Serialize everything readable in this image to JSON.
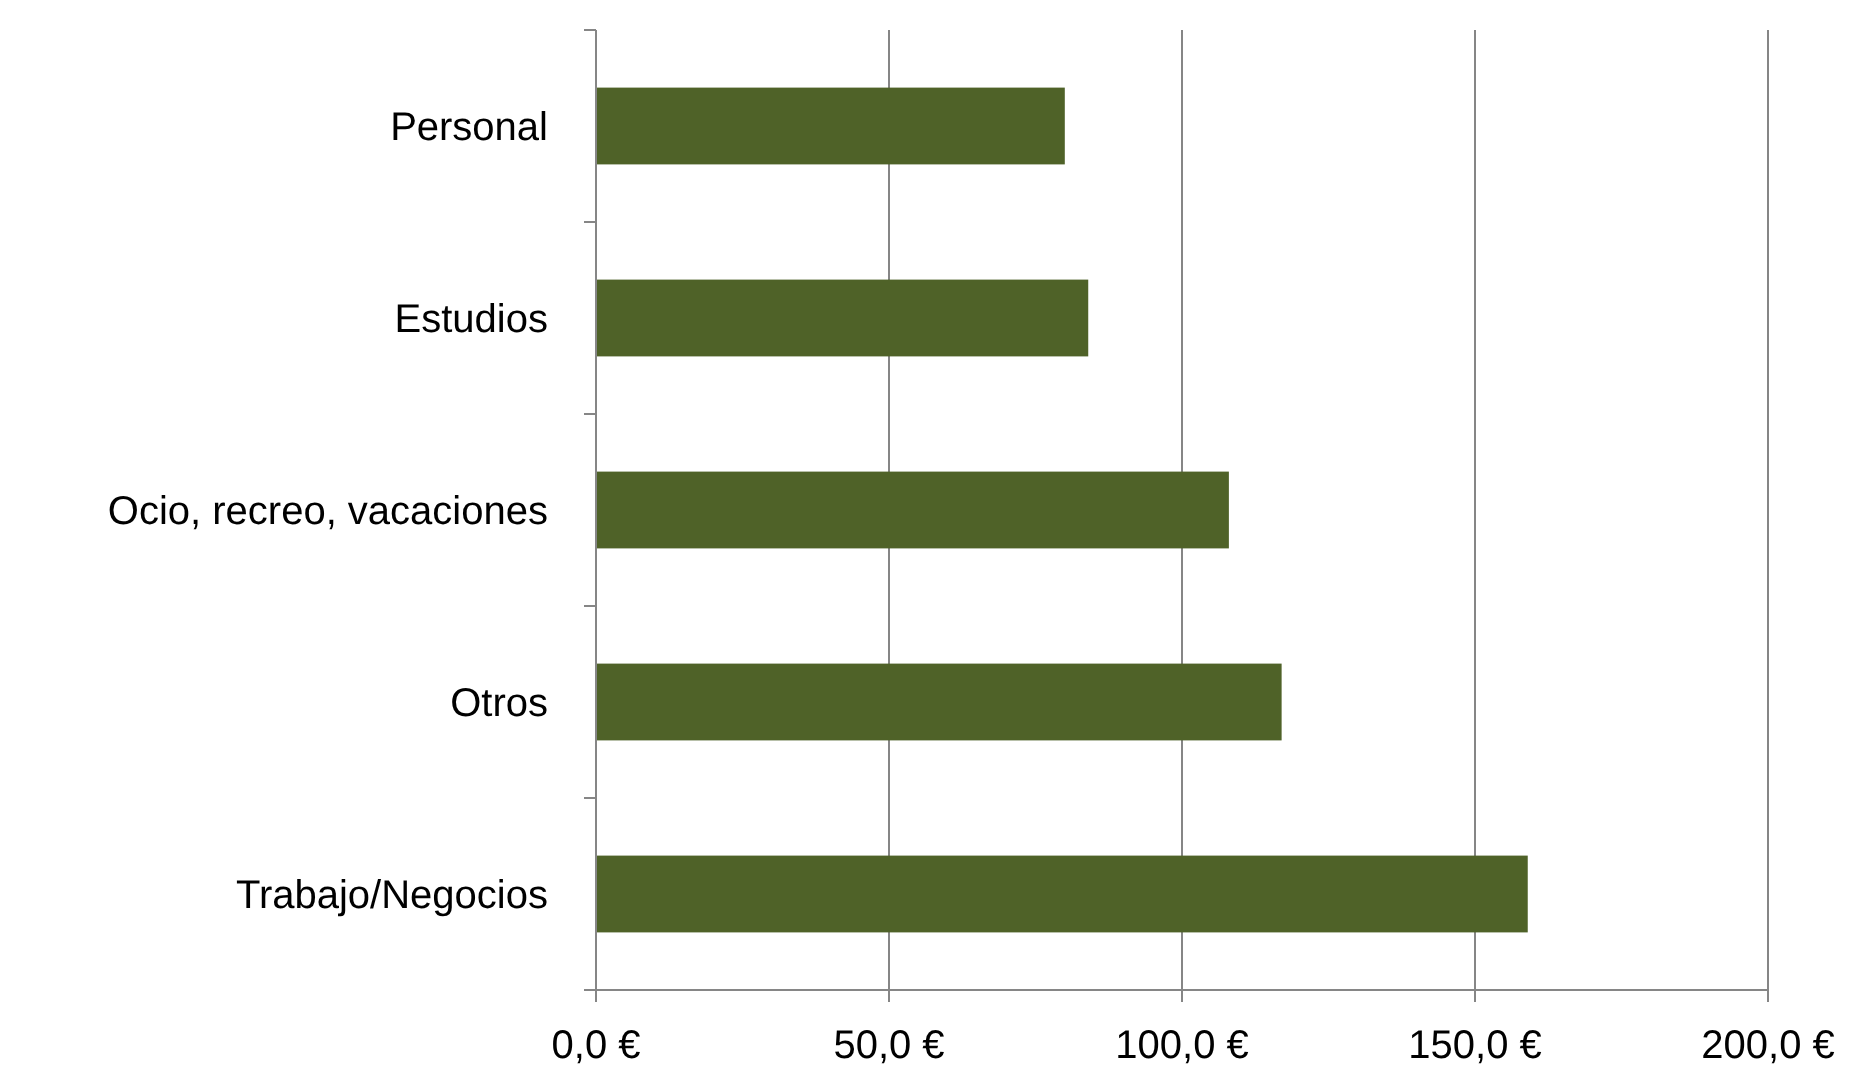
{
  "chart_data": {
    "type": "bar",
    "orientation": "horizontal",
    "categories": [
      "Personal",
      "Estudios",
      "Ocio, recreo, vacaciones",
      "Otros",
      "Trabajo/Negocios"
    ],
    "values": [
      80,
      84,
      108,
      117,
      159
    ],
    "color": "#4f6228",
    "xlim": [
      0,
      200
    ],
    "xticks": [
      {
        "value": 0,
        "label": "0,0 €"
      },
      {
        "value": 50,
        "label": "50,0 €"
      },
      {
        "value": 100,
        "label": "100,0 €"
      },
      {
        "value": 150,
        "label": "150,0 €"
      },
      {
        "value": 200,
        "label": "200,0 €"
      }
    ],
    "grid": "x"
  }
}
